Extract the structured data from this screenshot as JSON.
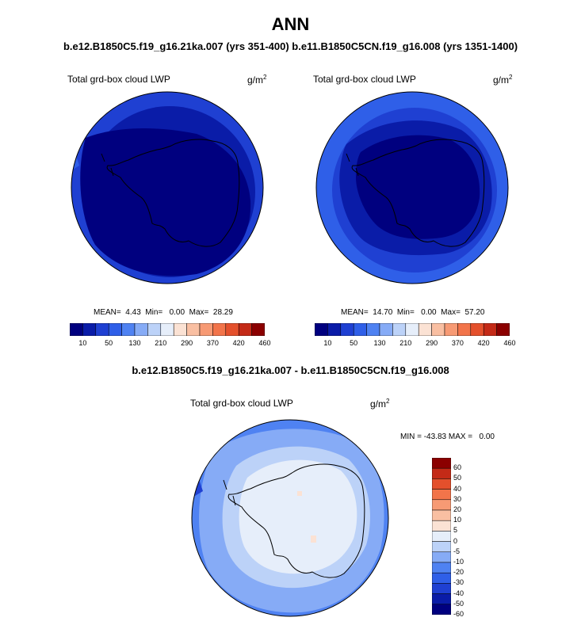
{
  "header": {
    "title": "ANN",
    "subtitle": "b.e12.B1850C5.f19_g16.21ka.007 (yrs 351-400) b.e11.B1850C5CN.f19_g16.008 (yrs 1351-1400)",
    "diff_title": "b.e12.B1850C5.f19_g16.21ka.007 - b.e11.B1850C5CN.f19_g16.008"
  },
  "panels": [
    {
      "label": "Total grd-box cloud LWP",
      "units": "g/m",
      "units_exp": "2",
      "stats": "MEAN=  4.43  Min=   0.00  Max=  28.29"
    },
    {
      "label": "Total grd-box cloud LWP",
      "units": "g/m",
      "units_exp": "2",
      "stats": "MEAN=  14.70  Min=   0.00  Max=  57.20"
    },
    {
      "label": "Total grd-box cloud LWP",
      "units": "g/m",
      "units_exp": "2",
      "stats": "MIN = -43.83 MAX =   0.00"
    }
  ],
  "colorbars": {
    "horizontal": {
      "colors": [
        "#00007f",
        "#0a1ca8",
        "#1f40d2",
        "#2f5fe8",
        "#4f82f2",
        "#86abf6",
        "#bcd2f8",
        "#e6eefa",
        "#fbe2d4",
        "#f9bfa2",
        "#f79a74",
        "#f2744a",
        "#e4502c",
        "#c42a17",
        "#8b0000"
      ],
      "tick_labels": [
        "10",
        "50",
        "130",
        "210",
        "290",
        "370",
        "420",
        "460"
      ]
    },
    "vertical": {
      "colors": [
        "#00007f",
        "#0a1ca8",
        "#1f40d2",
        "#2f5fe8",
        "#4f82f2",
        "#86abf6",
        "#bcd2f8",
        "#e6eefa",
        "#fbe2d4",
        "#f9bfa2",
        "#f79a74",
        "#f2744a",
        "#e4502c",
        "#c42a17",
        "#8b0000"
      ],
      "tick_labels": [
        "60",
        "50",
        "40",
        "30",
        "20",
        "10",
        "5",
        "0",
        "-5",
        "-10",
        "-20",
        "-30",
        "-40",
        "-50",
        "-60"
      ]
    }
  },
  "chart_data": [
    {
      "type": "heatmap",
      "projection": "south-polar-stereographic",
      "title": "Total grd-box cloud LWP",
      "units": "g/m2",
      "mean": 4.43,
      "min": 0.0,
      "max": 28.29,
      "levels": [
        10,
        50,
        130,
        210,
        290,
        370,
        420,
        460
      ]
    },
    {
      "type": "heatmap",
      "projection": "south-polar-stereographic",
      "title": "Total grd-box cloud LWP",
      "units": "g/m2",
      "mean": 14.7,
      "min": 0.0,
      "max": 57.2,
      "levels": [
        10,
        50,
        130,
        210,
        290,
        370,
        420,
        460
      ]
    },
    {
      "type": "heatmap",
      "projection": "south-polar-stereographic",
      "title": "Total grd-box cloud LWP",
      "units": "g/m2",
      "min": -43.83,
      "max": 0.0,
      "levels": [
        -60,
        -50,
        -40,
        -30,
        -20,
        -10,
        -5,
        0,
        5,
        10,
        20,
        30,
        40,
        50,
        60
      ]
    }
  ]
}
